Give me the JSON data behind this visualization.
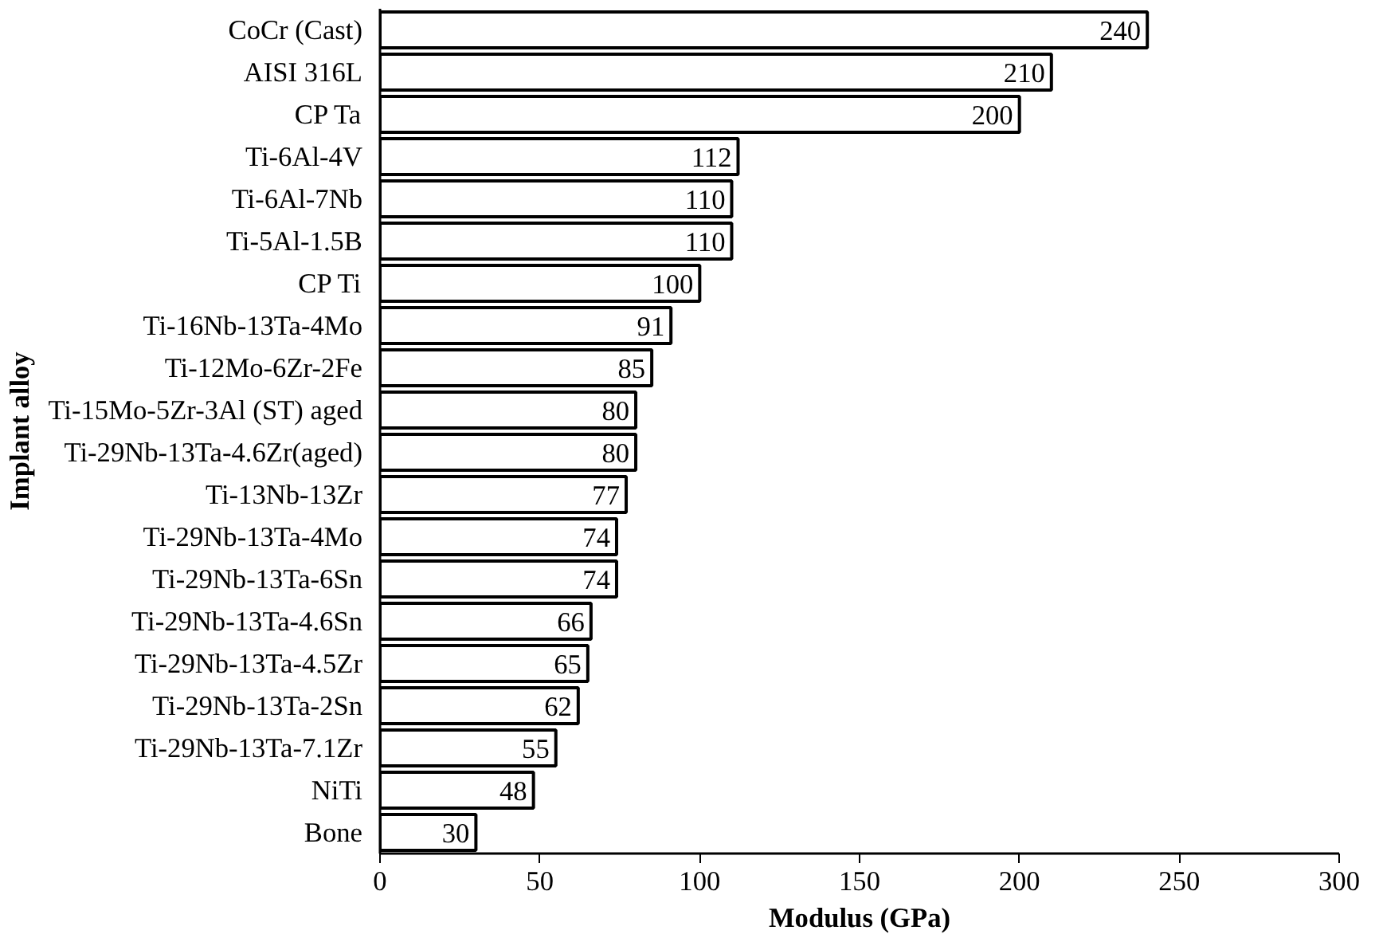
{
  "chart_data": {
    "type": "bar",
    "orientation": "horizontal",
    "xlabel": "Modulus (GPa)",
    "ylabel": "Implant alloy",
    "categories": [
      "CoCr (Cast)",
      "AISI 316L",
      "CP Ta",
      "Ti-6Al-4V",
      "Ti-6Al-7Nb",
      "Ti-5Al-1.5B",
      "CP Ti",
      "Ti-16Nb-13Ta-4Mo",
      "Ti-12Mo-6Zr-2Fe",
      "Ti-15Mo-5Zr-3Al (ST) aged",
      "Ti-29Nb-13Ta-4.6Zr(aged)",
      "Ti-13Nb-13Zr",
      "Ti-29Nb-13Ta-4Mo",
      "Ti-29Nb-13Ta-6Sn",
      "Ti-29Nb-13Ta-4.6Sn",
      "Ti-29Nb-13Ta-4.5Zr",
      "Ti-29Nb-13Ta-2Sn",
      "Ti-29Nb-13Ta-7.1Zr",
      "NiTi",
      "Bone"
    ],
    "values": [
      240,
      210,
      200,
      112,
      110,
      110,
      100,
      91,
      85,
      80,
      80,
      77,
      74,
      74,
      66,
      65,
      62,
      55,
      48,
      30
    ],
    "color": "#ffffff",
    "data_labels": true,
    "grid": false,
    "xlim": [
      0,
      300
    ],
    "xticks": [
      0,
      50,
      100,
      150,
      200,
      250,
      300
    ]
  }
}
